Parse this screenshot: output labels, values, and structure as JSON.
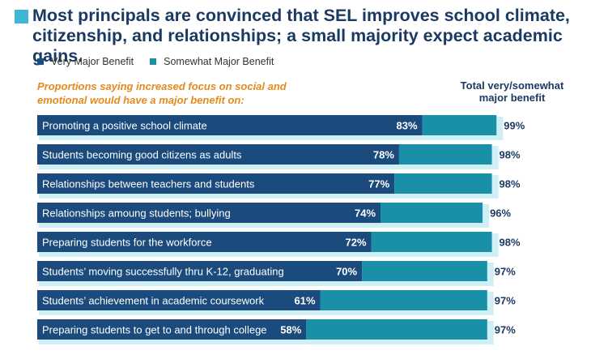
{
  "title": "Most principals are convinced that SEL improves school climate, citizenship, and relationships; a small majority expect academic gains.",
  "colors": {
    "very": "#1b4b7c",
    "somewhat": "#1a8fa8",
    "shadow": "#cfeff6",
    "title_square": "#3fb6d4",
    "orange": "#e38b1e",
    "navy": "#1b3a63"
  },
  "legend": [
    {
      "label": "Very Major Benefit",
      "color": "#1b4b7c"
    },
    {
      "label": "Somewhat Major Benefit",
      "color": "#1a8fa8"
    }
  ],
  "subtitle_parts": {
    "pre": "Proportions saying increased focus on social and emotional would have a ",
    "bold": "major benefit",
    "post": " on:"
  },
  "total_header": {
    "line1": "Total very/somewhat",
    "line2": "major benefit"
  },
  "chart_data": {
    "type": "bar",
    "orientation": "horizontal",
    "stacked": true,
    "categories": [
      "Promoting a positive school climate",
      "Students becoming good citizens as adults",
      "Relationships between teachers and students",
      "Relationships amoung students; bullying",
      "Preparing students for the workforce",
      "Students’ moving successfully thru K-12, graduating",
      "Students’ achievement in academic coursework",
      "Preparing students to get to and through college"
    ],
    "series": [
      {
        "name": "Very Major Benefit",
        "values": [
          83,
          78,
          77,
          74,
          72,
          70,
          61,
          58
        ]
      },
      {
        "name": "Somewhat Major Benefit",
        "values": [
          16,
          20,
          21,
          22,
          26,
          27,
          36,
          39
        ]
      }
    ],
    "very_labels": [
      "83%",
      "78%",
      "77%",
      "74%",
      "72%",
      "70%",
      "61%",
      "58%"
    ],
    "totals": [
      99,
      98,
      98,
      96,
      98,
      97,
      97,
      97
    ],
    "total_labels": [
      "99%",
      "98%",
      "98%",
      "96%",
      "98%",
      "97%",
      "97%",
      "97%"
    ],
    "xlim": [
      0,
      100
    ]
  }
}
